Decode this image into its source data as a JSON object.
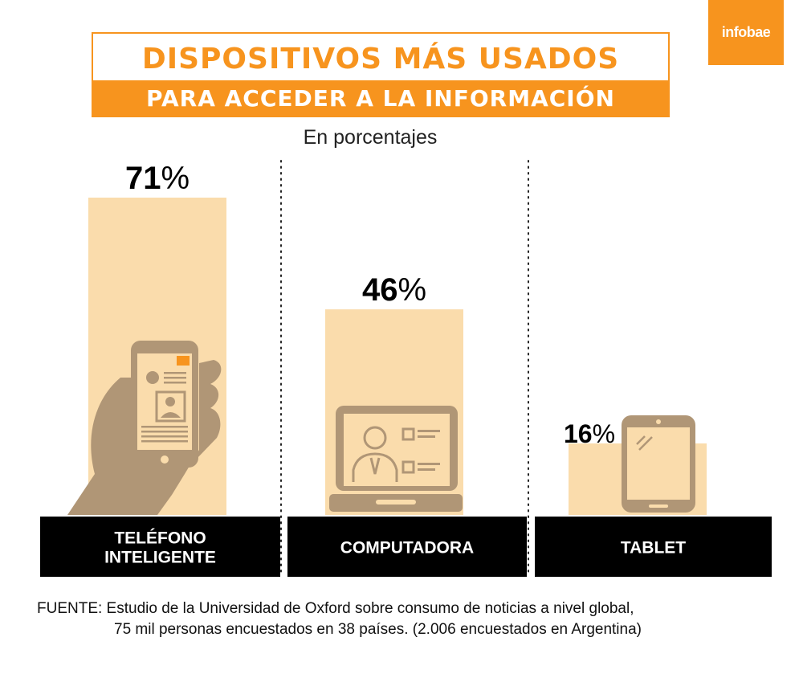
{
  "brand": {
    "logo_text": "infobae",
    "accent_color": "#f7941e"
  },
  "header": {
    "title": "DISPOSITIVOS MÁS USADOS",
    "subtitle": "PARA ACCEDER A LA INFORMACIÓN",
    "unit_note": "En porcentajes"
  },
  "chart_data": {
    "type": "bar",
    "categories": [
      "TELÉFONO INTELIGENTE",
      "COMPUTADORA",
      "TABLET"
    ],
    "category_lines": [
      [
        "TELÉFONO",
        "INTELIGENTE"
      ],
      [
        "COMPUTADORA"
      ],
      [
        "TABLET"
      ]
    ],
    "values": [
      71,
      46,
      16
    ],
    "value_labels": [
      "71",
      "46",
      "16"
    ],
    "value_suffix": "%",
    "icons": [
      "smartphone-in-hand-icon",
      "laptop-icon",
      "tablet-icon"
    ],
    "ylim": [
      0,
      71
    ],
    "bar_color": "#fadcac",
    "icon_color": "#b09676",
    "label_bar_color": "#000000",
    "grid": false,
    "legend": "none"
  },
  "footer": {
    "source_line1": "FUENTE: Estudio de la Universidad de Oxford sobre consumo de noticias a nivel global,",
    "source_line2": "75 mil personas encuestados en 38 países. (2.006 encuestados en Argentina)"
  }
}
